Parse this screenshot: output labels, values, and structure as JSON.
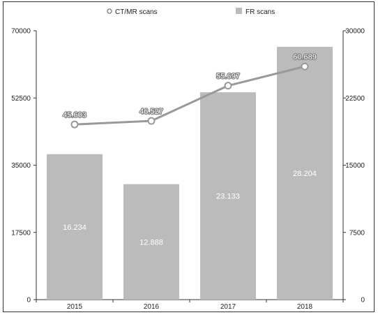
{
  "chart_data": {
    "type": "bar",
    "categories": [
      "2015",
      "2016",
      "2017",
      "2018"
    ],
    "series": [
      {
        "name": "FR scans",
        "type": "bar",
        "axis": "right",
        "values": [
          16234,
          12888,
          23133,
          28204
        ]
      },
      {
        "name": "CT/MR scans",
        "type": "line",
        "axis": "left",
        "values": [
          45603,
          46527,
          55697,
          60689
        ]
      }
    ],
    "bar_labels": [
      "16.234",
      "12.888",
      "23.133",
      "28.204"
    ],
    "line_labels": [
      "45.603",
      "46.527",
      "55.697",
      "60.689"
    ],
    "y_left": {
      "ticks": [
        "0",
        "17500",
        "35000",
        "52500",
        "70000"
      ],
      "ylim": [
        0,
        70000
      ]
    },
    "y_right": {
      "ticks": [
        "0",
        "7500",
        "15000",
        "22500",
        "30000"
      ],
      "ylim": [
        0,
        30000
      ]
    },
    "legend": {
      "position": "top-center",
      "items": [
        "CT/MR scans",
        "FR scans"
      ]
    },
    "grid": false,
    "colors": {
      "bar": "#bbbbbb",
      "line": "#999999",
      "marker_fill": "#ffffff",
      "axis": "#333333"
    }
  }
}
